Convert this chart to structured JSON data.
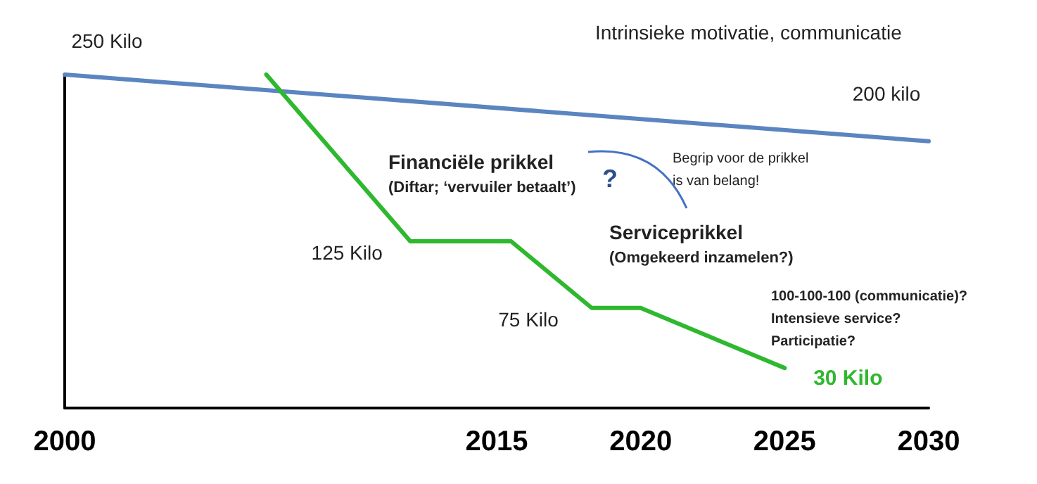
{
  "chart_data": {
    "type": "line",
    "xlim": [
      2000,
      2030
    ],
    "xticks": [
      2000,
      2015,
      2020,
      2025,
      2030
    ],
    "tick_labels": "x",
    "grid": false,
    "series": [
      {
        "color": "#5b85c0",
        "x": [
          2000,
          2030
        ],
        "values": [
          250,
          200
        ],
        "value_labels": [
          "250 Kilo",
          "200 kilo"
        ]
      },
      {
        "color": "#2eb82e",
        "x": [
          2007,
          2012,
          2015.5,
          2018.3,
          2020,
          2025
        ],
        "values": [
          250,
          125,
          125,
          75,
          75,
          30
        ],
        "value_labels": [
          null,
          "125 Kilo",
          null,
          "75 Kilo",
          null,
          "30 Kilo"
        ]
      }
    ],
    "annotations": [
      "Intrinsieke motivatie, communicatie",
      "Financiële prikkel",
      "(Diftar; ‘vervuiler betaalt’)",
      "?",
      "Begrip voor de prikkel",
      "is van belang!",
      "Serviceprikkel",
      "(Omgekeerd inzamelen?)",
      "100-100-100 (communicatie)?",
      "Intensieve service?",
      "Participatie?"
    ]
  }
}
